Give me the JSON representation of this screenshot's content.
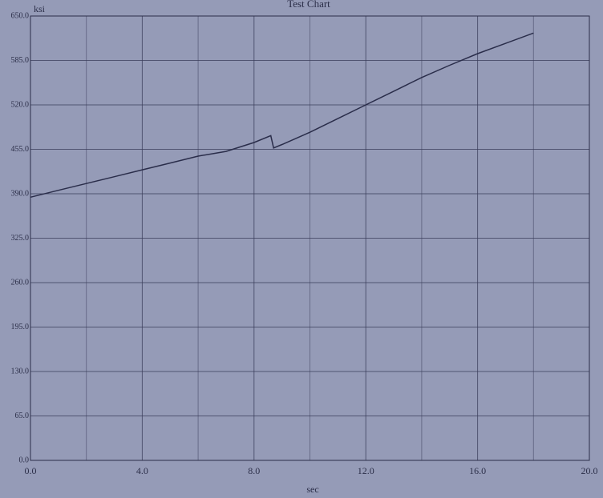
{
  "chart_data": {
    "type": "line",
    "title": "Test Chart",
    "x_label": "sec",
    "y_label": "ksi",
    "x": [
      0,
      1,
      2,
      3,
      4,
      5,
      6,
      7,
      8,
      8.6,
      8.7,
      9,
      10,
      11,
      12,
      13,
      14,
      15,
      16,
      17,
      18
    ],
    "series": [
      {
        "name": "ksi",
        "color": "#2a2d4a",
        "values": [
          385,
          395,
          405,
          415,
          425,
          435,
          445,
          452,
          465,
          475,
          457,
          462,
          480,
          500,
          520,
          540,
          560,
          578,
          595,
          610,
          625
        ]
      }
    ],
    "xlim": [
      0,
      20
    ],
    "ylim": [
      0,
      650
    ],
    "xticks": [
      {
        "value": 0,
        "label": "0.0"
      },
      {
        "value": 4,
        "label": "4.0"
      },
      {
        "value": 8,
        "label": "8.0"
      },
      {
        "value": 12,
        "label": "12.0"
      },
      {
        "value": 16,
        "label": "16.0"
      },
      {
        "value": 20,
        "label": "20.0"
      }
    ],
    "x_minor_grid": [
      2,
      6,
      10,
      14,
      18
    ],
    "yticks": [
      {
        "value": 0,
        "label": "0.0"
      },
      {
        "value": 65,
        "label": "65.0"
      },
      {
        "value": 130,
        "label": "130.0"
      },
      {
        "value": 195,
        "label": "195.0"
      },
      {
        "value": 260,
        "label": "260.0"
      },
      {
        "value": 325,
        "label": "325.0"
      },
      {
        "value": 390,
        "label": "390.0"
      },
      {
        "value": 455,
        "label": "455.0"
      },
      {
        "value": 520,
        "label": "520.0"
      },
      {
        "value": 585,
        "label": "585.0"
      },
      {
        "value": 650,
        "label": "650.0"
      }
    ],
    "grid": true
  }
}
